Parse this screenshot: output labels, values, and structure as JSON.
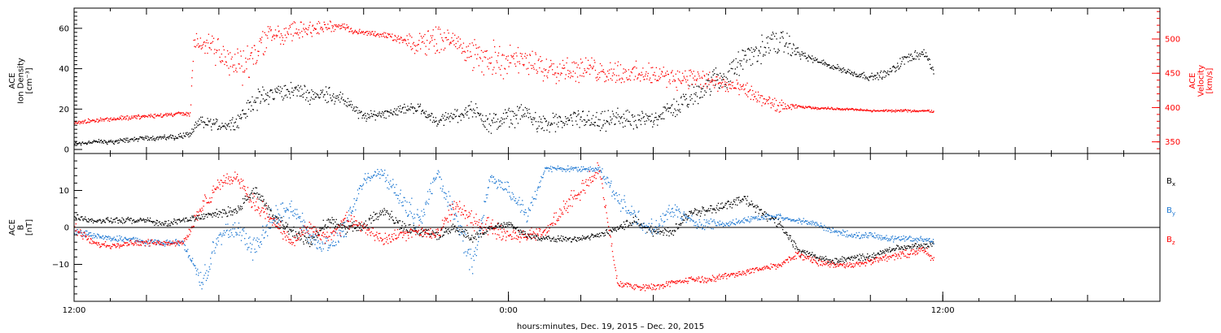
{
  "chart_data": {
    "type": "scatter",
    "xlabel": "hours:minutes, Dec. 19, 2015 – Dec. 20, 2015",
    "x_unit": "hours since Dec. 19, 2015 00:00",
    "xlim": [
      12,
      42
    ],
    "x_ticks": [
      {
        "x": 12,
        "label": "12:00"
      },
      {
        "x": 24,
        "label": "0:00"
      },
      {
        "x": 36,
        "label": "12:00"
      }
    ],
    "panels": [
      {
        "id": "plasma",
        "ylabel_left": [
          "ACE",
          "Ion Density",
          "[cm⁻³]"
        ],
        "ylim_left": [
          -2,
          70
        ],
        "yticks_left": [
          0,
          20,
          40,
          60
        ],
        "ylabel_right": [
          "ACE",
          "Velocity",
          "[km/s]"
        ],
        "ylim_right": [
          333,
          545
        ],
        "yticks_right": [
          350,
          400,
          450,
          500
        ],
        "series": [
          {
            "name": "Ion Density",
            "axis": "left",
            "color": "#000000",
            "x": [
              12.0,
              12.5,
              13.0,
              13.5,
              14.0,
              14.5,
              15.0,
              15.2,
              15.5,
              15.8,
              16.0,
              16.5,
              17.0,
              17.5,
              18.0,
              18.5,
              19.0,
              19.5,
              20.0,
              20.5,
              21.0,
              21.5,
              22.0,
              22.5,
              23.0,
              23.5,
              24.0,
              24.5,
              25.0,
              25.5,
              26.0,
              26.5,
              27.0,
              27.5,
              28.0,
              28.5,
              29.0,
              29.5,
              30.0,
              30.5,
              31.0,
              31.5,
              32.0,
              32.5,
              33.0,
              33.5,
              34.0,
              34.5,
              35.0,
              35.5,
              35.75
            ],
            "y": [
              3,
              4,
              4,
              5,
              6,
              6,
              7,
              8,
              14,
              13,
              12,
              14,
              25,
              28,
              30,
              27,
              28,
              24,
              16,
              18,
              20,
              21,
              14,
              17,
              20,
              13,
              16,
              18,
              12,
              14,
              16,
              13,
              16,
              14,
              16,
              20,
              26,
              33,
              36,
              45,
              50,
              55,
              48,
              44,
              41,
              38,
              36,
              38,
              46,
              48,
              37
            ],
            "spread": [
              1.5,
              1.5,
              1.5,
              1.5,
              1.5,
              1.5,
              2,
              2,
              4,
              4,
              4,
              4,
              6,
              6,
              5,
              5,
              5,
              4,
              3,
              3,
              3,
              3,
              3,
              4,
              5,
              6,
              6,
              6,
              6,
              5,
              6,
              6,
              6,
              5,
              5,
              6,
              7,
              8,
              7,
              8,
              8,
              8,
              3,
              2,
              2,
              2,
              2,
              3,
              3,
              3,
              3
            ]
          },
          {
            "name": "Velocity",
            "axis": "right",
            "color": "#ff0000",
            "x": [
              12.0,
              12.5,
              13.0,
              13.5,
              14.0,
              14.5,
              15.0,
              15.2,
              15.3,
              15.6,
              15.9,
              16.2,
              16.6,
              17.0,
              17.4,
              17.8,
              18.2,
              18.6,
              19.0,
              19.4,
              19.8,
              20.2,
              20.6,
              21.0,
              21.4,
              21.8,
              22.2,
              22.6,
              23.0,
              23.4,
              23.8,
              24.2,
              24.6,
              25.0,
              25.4,
              25.8,
              26.2,
              26.6,
              27.0,
              27.4,
              27.8,
              28.2,
              28.6,
              29.0,
              29.4,
              29.8,
              30.2,
              30.6,
              31.0,
              31.5,
              32.0,
              32.5,
              33.0,
              33.5,
              34.0,
              34.5,
              35.0,
              35.5,
              35.75
            ],
            "y": [
              378,
              382,
              384,
              386,
              388,
              390,
              392,
              390,
              500,
              490,
              485,
              470,
              460,
              480,
              510,
              505,
              515,
              515,
              518,
              520,
              510,
              510,
              505,
              500,
              490,
              500,
              500,
              500,
              475,
              470,
              472,
              468,
              465,
              460,
              458,
              456,
              455,
              454,
              452,
              450,
              448,
              446,
              445,
              444,
              440,
              435,
              430,
              425,
              410,
              402,
              402,
              400,
              399,
              398,
              396,
              396,
              396,
              396,
              395
            ],
            "spread": [
              4,
              4,
              4,
              4,
              4,
              4,
              4,
              4,
              15,
              20,
              25,
              30,
              40,
              30,
              20,
              20,
              20,
              15,
              10,
              6,
              6,
              5,
              5,
              6,
              20,
              30,
              20,
              15,
              30,
              30,
              30,
              25,
              25,
              25,
              25,
              22,
              22,
              22,
              20,
              20,
              20,
              20,
              20,
              18,
              18,
              15,
              14,
              14,
              12,
              12,
              2,
              2,
              2,
              2,
              2,
              2,
              2,
              2,
              2
            ]
          }
        ]
      },
      {
        "id": "magnetic",
        "ylabel_left": [
          "ACE",
          "B",
          "[nT]"
        ],
        "ylim_left": [
          -20,
          20
        ],
        "yticks_left": [
          -10,
          0,
          10
        ],
        "zero_line": true,
        "series": [
          {
            "name": "Bx",
            "label": "B",
            "label_sub": "x",
            "color": "#000000",
            "x": [
              12.0,
              12.5,
              13.0,
              13.5,
              14.0,
              14.5,
              15.0,
              15.5,
              16.0,
              16.5,
              17.0,
              17.5,
              18.0,
              18.5,
              19.0,
              19.5,
              20.0,
              20.5,
              21.0,
              21.5,
              22.0,
              22.5,
              23.0,
              23.5,
              24.0,
              24.5,
              25.0,
              25.5,
              26.0,
              26.5,
              27.0,
              27.5,
              28.0,
              28.5,
              29.0,
              29.5,
              30.0,
              30.5,
              31.0,
              31.5,
              32.0,
              32.5,
              33.0,
              33.5,
              34.0,
              34.5,
              35.0,
              35.5,
              35.75
            ],
            "y": [
              3,
              2,
              2,
              2,
              2,
              1,
              2,
              3,
              4,
              5,
              10,
              3,
              -1,
              -4,
              2,
              0,
              0,
              5,
              1,
              -1,
              -2,
              0,
              -3,
              0,
              1,
              -2,
              -3,
              -3,
              -3,
              -2,
              0,
              2,
              -1,
              -1,
              4,
              5,
              6,
              8,
              4,
              1,
              -6,
              -8,
              -9,
              -8,
              -8,
              -6,
              -5,
              -5,
              -4
            ],
            "spread": [
              1,
              1,
              1,
              1,
              1,
              1,
              1,
              1,
              1.5,
              1.5,
              2,
              2,
              2,
              2,
              2,
              2,
              2,
              2,
              2,
              2,
              1.5,
              1.5,
              1.5,
              1.5,
              1,
              1,
              1,
              1,
              1,
              1,
              1.5,
              1.5,
              1.5,
              1.5,
              1.5,
              1.5,
              1.5,
              1.5,
              1.5,
              1.5,
              1.5,
              1,
              1,
              1,
              1,
              1,
              1,
              1,
              1
            ]
          },
          {
            "name": "By",
            "label": "B",
            "label_sub": "y",
            "color": "#1e78d2",
            "x": [
              12.0,
              12.5,
              13.0,
              13.5,
              14.0,
              14.5,
              15.0,
              15.5,
              16.0,
              16.5,
              17.0,
              17.5,
              18.0,
              18.5,
              19.0,
              19.5,
              20.0,
              20.5,
              21.0,
              21.5,
              22.0,
              22.5,
              23.0,
              23.5,
              24.0,
              24.5,
              25.0,
              25.5,
              26.0,
              26.5,
              27.0,
              27.5,
              28.0,
              28.5,
              29.0,
              29.5,
              30.0,
              30.5,
              31.0,
              31.5,
              32.0,
              32.5,
              33.0,
              33.5,
              34.0,
              34.5,
              35.0,
              35.5,
              35.75
            ],
            "y": [
              -1,
              -2,
              -3,
              -3,
              -4,
              -4,
              -4,
              -15,
              -2,
              0,
              -6,
              3,
              6,
              -2,
              -5,
              0,
              13,
              15,
              8,
              2,
              14,
              4,
              -10,
              14,
              10,
              3,
              16,
              16,
              16,
              16,
              8,
              3,
              -1,
              5,
              2,
              1,
              1,
              2,
              3,
              3,
              2,
              1,
              -1,
              -2,
              -2,
              -3,
              -3,
              -3,
              -4
            ],
            "spread": [
              1,
              1,
              1,
              1,
              1,
              1,
              1,
              4,
              3,
              3,
              4,
              4,
              3,
              3,
              3,
              3,
              2,
              2,
              4,
              4,
              3,
              4,
              5,
              2,
              3,
              3,
              1,
              1,
              1,
              1,
              3,
              3,
              3,
              3,
              2,
              2,
              1,
              1,
              1,
              1,
              1,
              1,
              1,
              1,
              1,
              1,
              1,
              1,
              1
            ]
          },
          {
            "name": "Bz",
            "label": "B",
            "label_sub": "z",
            "color": "#ff0000",
            "x": [
              12.0,
              12.5,
              13.0,
              13.5,
              14.0,
              14.5,
              15.0,
              15.5,
              16.0,
              16.5,
              17.0,
              17.5,
              18.0,
              18.5,
              19.0,
              19.5,
              20.0,
              20.5,
              21.0,
              21.5,
              22.0,
              22.5,
              23.0,
              23.5,
              24.0,
              24.5,
              25.0,
              25.5,
              26.0,
              26.5,
              27.0,
              27.5,
              28.0,
              28.5,
              29.0,
              29.5,
              30.0,
              30.5,
              31.0,
              31.5,
              32.0,
              32.5,
              33.0,
              33.5,
              34.0,
              34.5,
              35.0,
              35.5,
              35.75
            ],
            "y": [
              0,
              -4,
              -5,
              -4,
              -4,
              -4,
              -4,
              5,
              12,
              14,
              6,
              2,
              -4,
              0,
              -3,
              2,
              0,
              -3,
              -2,
              -1,
              -2,
              6,
              2,
              0,
              -2,
              -2,
              -1,
              5,
              10,
              16,
              -15,
              -16,
              -16,
              -15,
              -14,
              -14,
              -13,
              -12,
              -11,
              -10,
              -7,
              -9,
              -10,
              -10,
              -9,
              -8,
              -7,
              -6,
              -9
            ],
            "spread": [
              2,
              1,
              1,
              1,
              1,
              1,
              1,
              3,
              2,
              2,
              3,
              3,
              2,
              2,
              3,
              3,
              2,
              2,
              2,
              2,
              2,
              3,
              3,
              3,
              2,
              2,
              2,
              3,
              3,
              3,
              1,
              1,
              1,
              1,
              1,
              1,
              1,
              1,
              1,
              1,
              1.5,
              1.5,
              1,
              1,
              1,
              1,
              1.5,
              1.5,
              1
            ]
          }
        ]
      }
    ]
  }
}
